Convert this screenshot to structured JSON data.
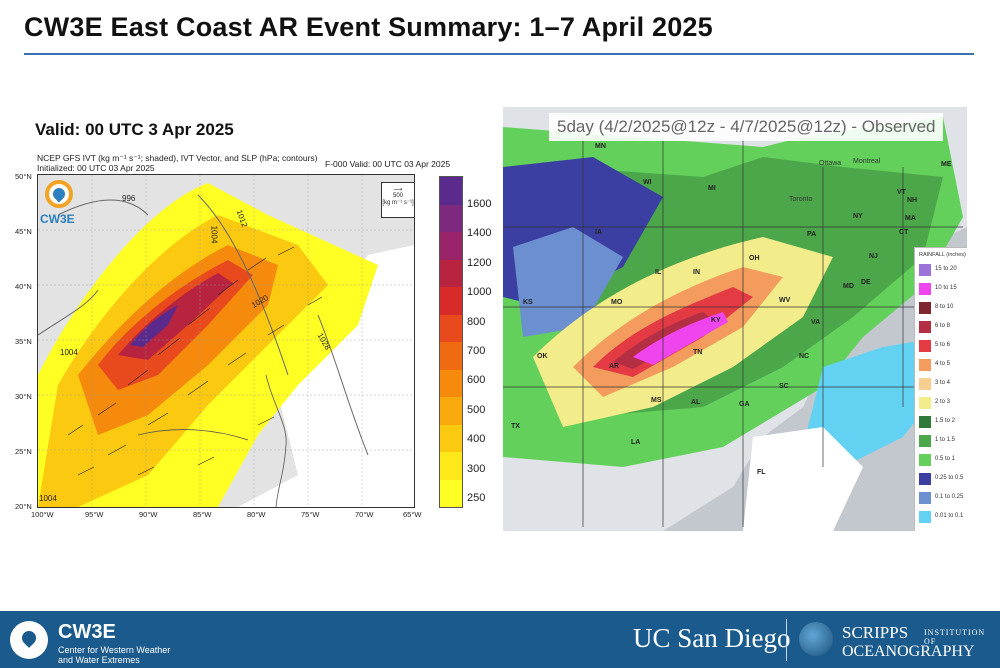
{
  "slide": {
    "title": "CW3E East Coast AR Event Summary: 1–7 April 2025"
  },
  "left_panel": {
    "valid_label": "Valid: 00 UTC 3 Apr 2025",
    "model_line1": "NCEP GFS IVT (kg m⁻¹ s⁻¹; shaded), IVT Vector, and SLP (hPa; contours)",
    "model_line2": "Initialized: 00 UTC 03 Apr 2025",
    "forecast_hour": "F-000  Valid: 00 UTC 03 Apr 2025",
    "logo_text": "CW3E",
    "vector_ref_value": "500",
    "vector_ref_units": "[kg m⁻¹ s⁻¹]",
    "lat_labels": [
      "50°N",
      "45°N",
      "40°N",
      "35°N",
      "30°N",
      "25°N",
      "20°N"
    ],
    "lon_labels": [
      "100°W",
      "95°W",
      "90°W",
      "85°W",
      "80°W",
      "75°W",
      "70°W",
      "65°W"
    ],
    "contours": [
      "996",
      "1012",
      "1004",
      "1020",
      "1028",
      "1004",
      "1004"
    ],
    "colorbar_labels": [
      "1600",
      "1400",
      "1200",
      "1000",
      "800",
      "700",
      "600",
      "500",
      "400",
      "300",
      "250"
    ],
    "colorbar_colors": [
      "#5a2a8c",
      "#7d2a7e",
      "#9a246a",
      "#b8243f",
      "#d92a2a",
      "#e84a1e",
      "#f06a12",
      "#f58a0c",
      "#f8a90c",
      "#fbc90f",
      "#fde919",
      "#ffff24"
    ]
  },
  "right_panel": {
    "title": "5day (4/2/2025@12z - 4/7/2025@12z) - Observed",
    "states": [
      "MN",
      "WI",
      "MI",
      "IA",
      "IL",
      "IN",
      "OH",
      "PA",
      "NY",
      "VT",
      "NH",
      "ME",
      "MA",
      "CT",
      "NJ",
      "DE",
      "MD",
      "WV",
      "VA",
      "KY",
      "TN",
      "NC",
      "SC",
      "GA",
      "AL",
      "MS",
      "AR",
      "MO",
      "KS",
      "OK",
      "TX",
      "LA",
      "FL"
    ],
    "cities": [
      "Ottawa",
      "Montreal",
      "Toronto"
    ],
    "legend_title": "RAINFALL (inches)",
    "legend": [
      {
        "label": "15 to 20",
        "color": "#9a72d8"
      },
      {
        "label": "10 to 15",
        "color": "#ef45ef"
      },
      {
        "label": "8 to 10",
        "color": "#7e2730"
      },
      {
        "label": "6 to 8",
        "color": "#b52f44"
      },
      {
        "label": "5 to 6",
        "color": "#e43a43"
      },
      {
        "label": "4 to 5",
        "color": "#f49c5e"
      },
      {
        "label": "3 to 4",
        "color": "#f6ce8f"
      },
      {
        "label": "2 to 3",
        "color": "#f3ec8a"
      },
      {
        "label": "1.5 to 2",
        "color": "#2f7a38"
      },
      {
        "label": "1 to 1.5",
        "color": "#4ca74b"
      },
      {
        "label": "0.5 to 1",
        "color": "#62d05a"
      },
      {
        "label": "0.25 to 0.5",
        "color": "#3b3fa2"
      },
      {
        "label": "0.1 to 0.25",
        "color": "#6c8fd0"
      },
      {
        "label": "0.01 to 0.1",
        "color": "#63d2f2"
      }
    ]
  },
  "footer": {
    "org": "CW3E",
    "org_sub": "Center for Western Weather and Water Extremes",
    "ucsd": "UC San Diego",
    "scripps": "SCRIPPS",
    "scripps_small": "INSTITUTION OF",
    "oceanography": "OCEANOGRAPHY"
  }
}
